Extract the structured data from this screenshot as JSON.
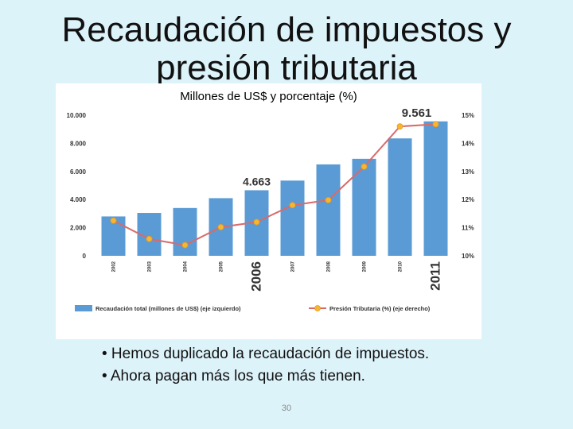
{
  "slide": {
    "title": "Recaudación de impuestos y presión tributaria",
    "bullets": [
      "• Hemos duplicado la recaudación de impuestos.",
      "• Ahora pagan más los que más tienen."
    ],
    "page_number": "30"
  },
  "chart_data": {
    "type": "bar",
    "subtitle": "Millones de US$ y porcentaje (%)",
    "categories": [
      "2002",
      "2003",
      "2004",
      "2005",
      "2006",
      "2007",
      "2008",
      "2009",
      "2010",
      "2011"
    ],
    "series": [
      {
        "name": "Recaudación total (millones de US$) (eje izquierdo)",
        "type": "bar",
        "axis": "left",
        "color": "#5b9bd5",
        "values": [
          2800,
          3050,
          3400,
          4100,
          4663,
          5350,
          6500,
          6900,
          8350,
          9561
        ]
      },
      {
        "name": "Presión Tributaria (%) (eje derecho)",
        "type": "line",
        "axis": "right",
        "line_color": "#d96a6a",
        "marker_color": "#f5b731",
        "values": [
          11.25,
          10.6,
          10.38,
          11.02,
          11.2,
          11.8,
          11.98,
          13.17,
          14.6,
          14.68
        ]
      }
    ],
    "y_left": {
      "min": 0,
      "max": 10000,
      "ticks": [
        "0",
        "2.000",
        "4.000",
        "6.000",
        "8.000",
        "10.000"
      ]
    },
    "y_right": {
      "min": 10,
      "max": 15,
      "ticks": [
        "10%",
        "11%",
        "12%",
        "13%",
        "14%",
        "15%"
      ]
    },
    "highlighted_categories": [
      "2006",
      "2011"
    ],
    "data_labels": [
      {
        "category": "2006",
        "text": "4.663"
      },
      {
        "category": "2011",
        "text": "9.561"
      }
    ],
    "grid": false,
    "legend_position": "bottom"
  }
}
